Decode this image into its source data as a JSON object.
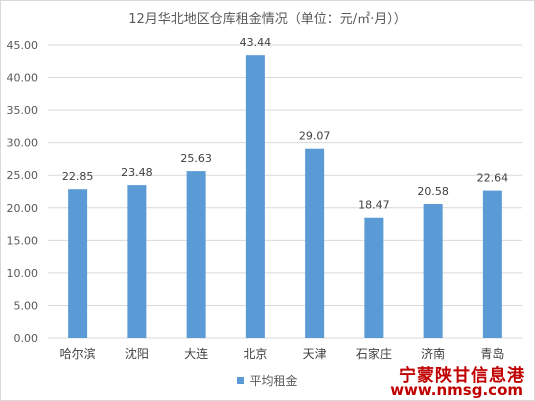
{
  "chart_data": {
    "type": "bar",
    "title": "12月华北地区仓库租金情况（单位：元/㎡·月））",
    "categories": [
      "哈尔滨",
      "沈阳",
      "大连",
      "北京",
      "天津",
      "石家庄",
      "济南",
      "青岛"
    ],
    "series": [
      {
        "name": "平均租金",
        "values": [
          22.85,
          23.48,
          25.63,
          43.44,
          29.07,
          18.47,
          20.58,
          22.64
        ],
        "color": "#5b9bd5"
      }
    ],
    "value_labels": [
      "22.85",
      "23.48",
      "25.63",
      "43.44",
      "29.07",
      "18.47",
      "20.58",
      "22.64"
    ],
    "ylim": [
      0,
      45
    ],
    "yticks": [
      "0.00",
      "5.00",
      "10.00",
      "15.00",
      "20.00",
      "25.00",
      "30.00",
      "35.00",
      "40.00",
      "45.00"
    ],
    "ytick_values": [
      0,
      5,
      10,
      15,
      20,
      25,
      30,
      35,
      40,
      45
    ],
    "grid": true,
    "legend_position": "bottom",
    "gridline_color": "#d9d9d9"
  },
  "watermark": {
    "line1": "宁蒙陕甘信息港",
    "line2": "www.nmsg.com"
  }
}
